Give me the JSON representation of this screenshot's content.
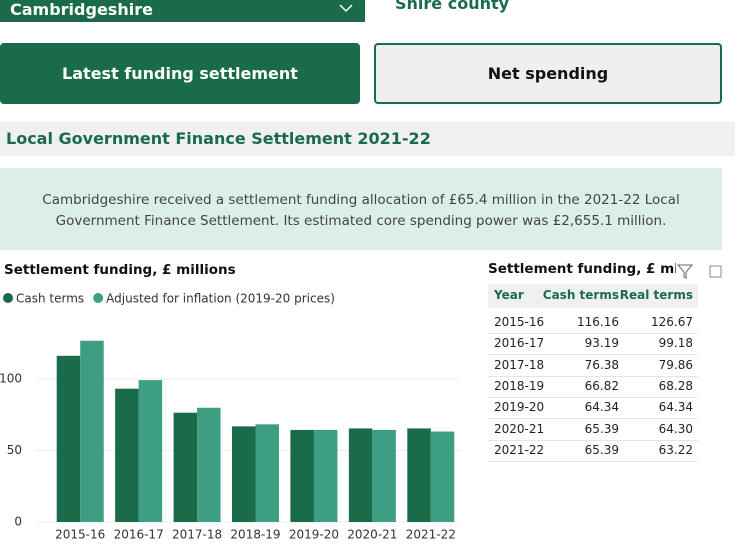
{
  "selector": {
    "value": "Cambridgeshire",
    "type_label": "Shire county"
  },
  "tabs": [
    "Latest funding settlement",
    "Net spending"
  ],
  "section_title": "Local Government Finance Settlement 2021-22",
  "summary": [
    "Cambridgeshire received a settlement funding allocation of £65.4 million in the 2021-22 Local",
    "Government Finance Settlement. Its estimated core spending power was £2,655.1 million."
  ],
  "chart_data": {
    "type": "bar",
    "title": "Settlement funding, £ millions",
    "categories": [
      "2015-16",
      "2016-17",
      "2017-18",
      "2018-19",
      "2019-20",
      "2020-21",
      "2021-22"
    ],
    "series": [
      {
        "name": "Cash terms",
        "color": "#1a6b4a",
        "values": [
          116.16,
          93.19,
          76.38,
          66.82,
          64.34,
          65.39,
          65.39
        ]
      },
      {
        "name": "Adjusted for inflation (2019-20 prices)",
        "color": "#3d9e84",
        "values": [
          126.67,
          99.18,
          79.86,
          68.28,
          64.34,
          64.3,
          63.22
        ]
      }
    ],
    "ylim": [
      0,
      130
    ],
    "yticks": [
      0,
      50,
      100
    ],
    "grid": true
  },
  "table": {
    "title": "Settlement funding, £ mil",
    "header": [
      "Year",
      "Cash terms",
      "Real terms"
    ],
    "rows": [
      [
        "2015-16",
        "116.16",
        "126.67"
      ],
      [
        "2016-17",
        "93.19",
        "99.18"
      ],
      [
        "2017-18",
        "76.38",
        "79.86"
      ],
      [
        "2018-19",
        "66.82",
        "68.28"
      ],
      [
        "2019-20",
        "64.34",
        "64.34"
      ],
      [
        "2020-21",
        "65.39",
        "64.30"
      ],
      [
        "2021-22",
        "65.39",
        "63.22"
      ]
    ]
  }
}
